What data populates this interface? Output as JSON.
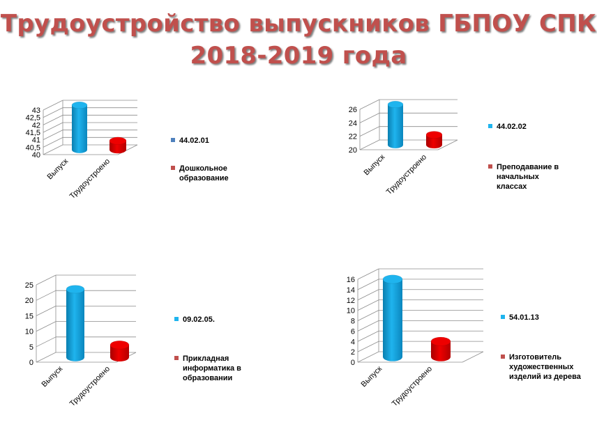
{
  "title": {
    "line1": "Трудоустройство выпускников ГБПОУ СПК",
    "line2": "2018-2019 года"
  },
  "colors": {
    "title": "#c0504d",
    "series1": "#1fb4ee",
    "series2": "#ee0000",
    "legend1": "#1fb4ee",
    "legend2": "#c0504d"
  },
  "chart_data": [
    {
      "type": "bar",
      "categories": [
        "Выпуск",
        "Трудоустроено"
      ],
      "values": [
        43,
        40.6
      ],
      "ylim": [
        40,
        43
      ],
      "yticks": [
        "40",
        "40,5",
        "41",
        "41,5",
        "42",
        "42,5",
        "43"
      ],
      "legend": [
        "44.02.01",
        "Дошкольное образование"
      ],
      "legend_colors": [
        "#4f81bd",
        "#c0504d"
      ]
    },
    {
      "type": "bar",
      "categories": [
        "Выпуск",
        "Трудоустроено"
      ],
      "values": [
        26,
        21.5
      ],
      "ylim": [
        20,
        26
      ],
      "yticks": [
        "20",
        "22",
        "24",
        "26"
      ],
      "legend": [
        "44.02.02",
        "Преподавание в начальных классах"
      ],
      "legend_colors": [
        "#1fb4ee",
        "#c0504d"
      ]
    },
    {
      "type": "bar",
      "categories": [
        "Выпуск",
        "Трудоустроено"
      ],
      "values": [
        22,
        4
      ],
      "ylim": [
        0,
        25
      ],
      "yticks": [
        "0",
        "5",
        "10",
        "15",
        "20",
        "25"
      ],
      "legend": [
        "09.02.05.",
        "Прикладная информатика в образовании"
      ],
      "legend_colors": [
        "#1fb4ee",
        "#c0504d"
      ]
    },
    {
      "type": "bar",
      "categories": [
        "Выпуск",
        "Трудоустроено"
      ],
      "values": [
        15,
        3
      ],
      "ylim": [
        0,
        16
      ],
      "yticks": [
        "0",
        "2",
        "4",
        "6",
        "8",
        "10",
        "12",
        "14",
        "16"
      ],
      "legend": [
        "54.01.13",
        "Изготовитель художественных изделий из дерева"
      ],
      "legend_colors": [
        "#1fb4ee",
        "#c0504d"
      ]
    }
  ]
}
